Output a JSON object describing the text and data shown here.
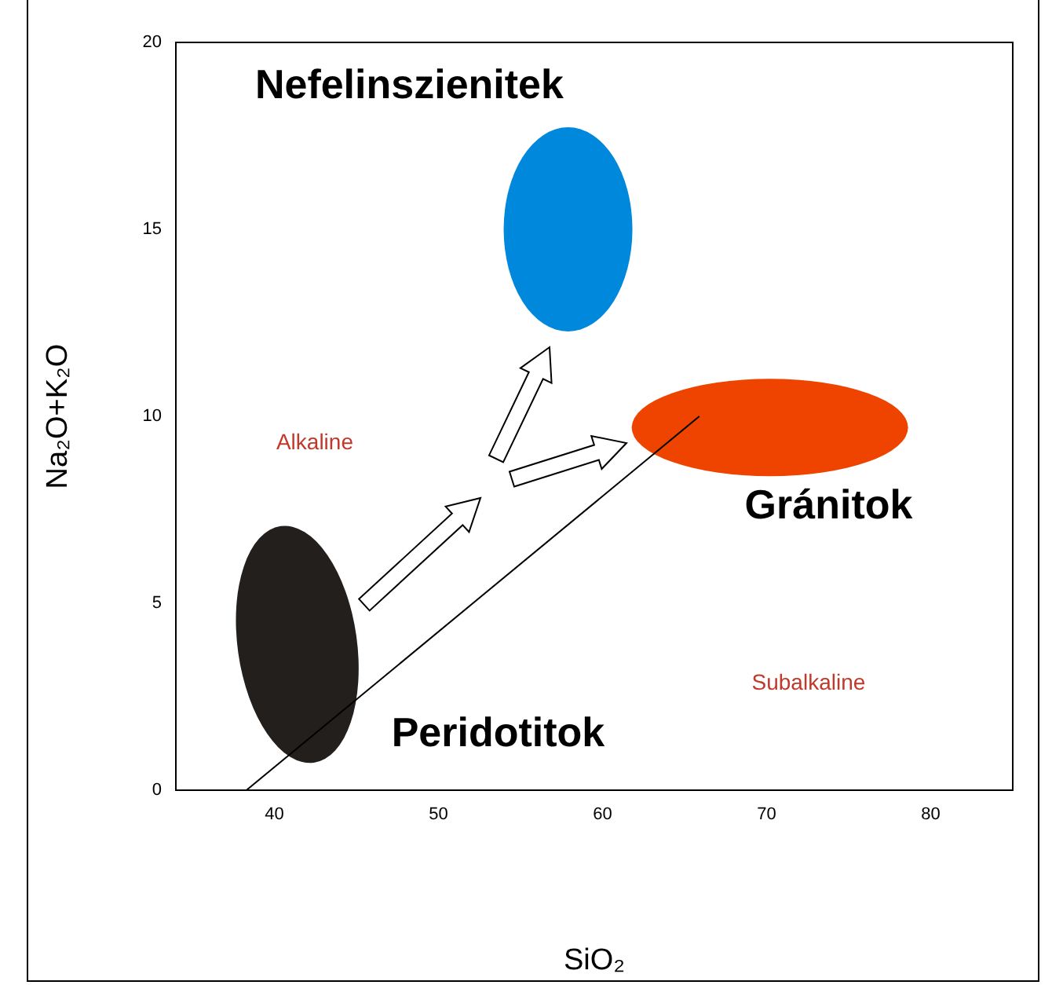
{
  "chart_data": {
    "type": "scatter",
    "xlabel": "SiO₂",
    "ylabel": "Na₂O+K₂O",
    "xlim": [
      34,
      85
    ],
    "ylim": [
      0,
      20
    ],
    "xticks": [
      40,
      50,
      60,
      70,
      80
    ],
    "yticks": [
      0,
      5,
      10,
      15,
      20
    ],
    "grid": false,
    "legend": false,
    "series": [
      {
        "type": "line",
        "color": "#000000",
        "x": [
          38.3,
          65.9
        ],
        "values": [
          0,
          10
        ],
        "marker": "none",
        "line_style": "solid"
      }
    ],
    "annotations": [
      "Nefelinszienitek",
      "Gránitok",
      "Peridotitok",
      "Alkaline",
      "Subalkaline"
    ]
  }
}
